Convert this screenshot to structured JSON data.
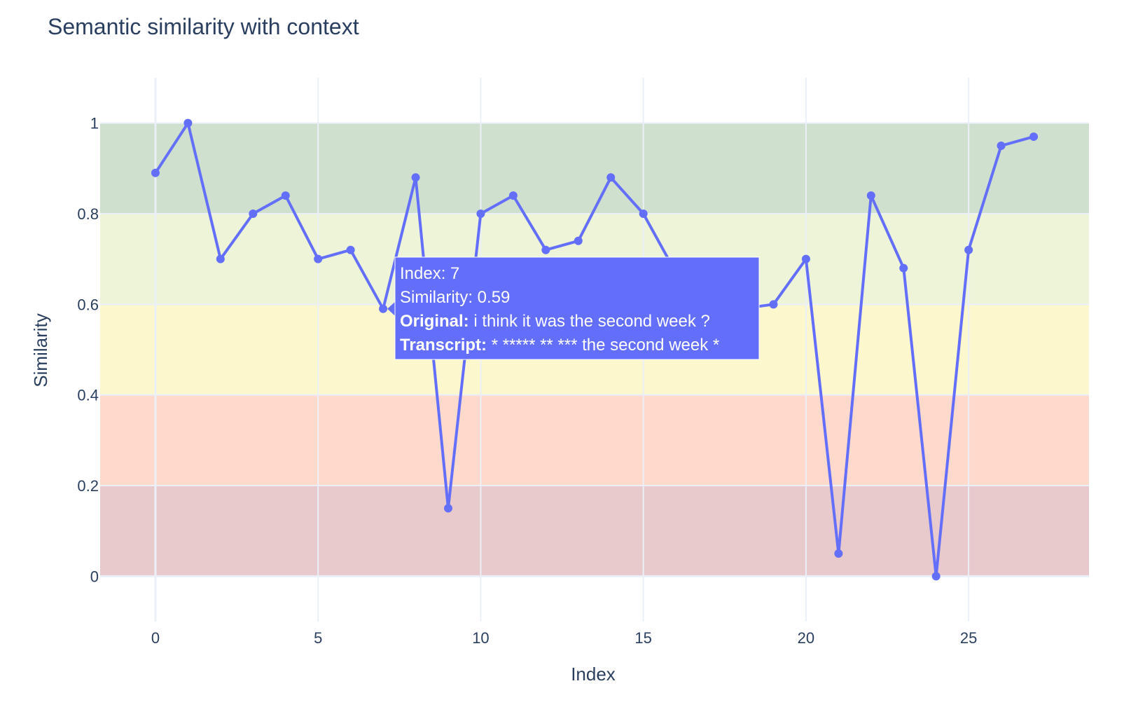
{
  "chart_data": {
    "type": "line",
    "title": "Semantic similarity with context",
    "xlabel": "Index",
    "ylabel": "Similarity",
    "xlim": [
      -1.7,
      28.7
    ],
    "ylim": [
      -0.1,
      1.1
    ],
    "x_ticks": [
      0,
      5,
      10,
      15,
      20,
      25
    ],
    "y_ticks": [
      0,
      0.2,
      0.4,
      0.6,
      0.8,
      1
    ],
    "y_tick_labels": [
      "0",
      "0.2",
      "0.4",
      "0.6",
      "0.8",
      "1"
    ],
    "grid": true,
    "line_color": "#636efa",
    "bands": [
      {
        "from": 0.8,
        "to": 1.0,
        "color": "#cfe1ce"
      },
      {
        "from": 0.6,
        "to": 0.8,
        "color": "#edf4d8"
      },
      {
        "from": 0.4,
        "to": 0.6,
        "color": "#fdf7ce"
      },
      {
        "from": 0.2,
        "to": 0.4,
        "color": "#ffd9cc"
      },
      {
        "from": 0.0,
        "to": 0.2,
        "color": "#e8c9cc"
      }
    ],
    "series": [
      {
        "x": [
          0,
          1,
          2,
          3,
          4,
          5,
          6,
          7,
          8,
          9,
          10,
          11,
          12,
          13,
          14,
          15,
          16,
          17,
          18,
          19,
          20,
          21,
          22,
          23,
          24,
          25,
          26,
          27
        ],
        "y": [
          0.89,
          1.0,
          0.7,
          0.8,
          0.84,
          0.7,
          0.72,
          0.59,
          0.88,
          0.15,
          0.8,
          0.84,
          0.72,
          0.74,
          0.88,
          0.8,
          0.67,
          0.61,
          0.59,
          0.6,
          0.7,
          0.05,
          0.84,
          0.68,
          0.0,
          0.72,
          0.95,
          0.97
        ]
      }
    ]
  },
  "tooltip": {
    "index_line": "Index: 7",
    "similarity_line": "Similarity: 0.59",
    "original_label": "Original:",
    "original_text": " i think it was the second week ?",
    "transcript_label": "Transcript:",
    "transcript_text": " * ***** ** *** the second week *",
    "background": "#636efa"
  }
}
